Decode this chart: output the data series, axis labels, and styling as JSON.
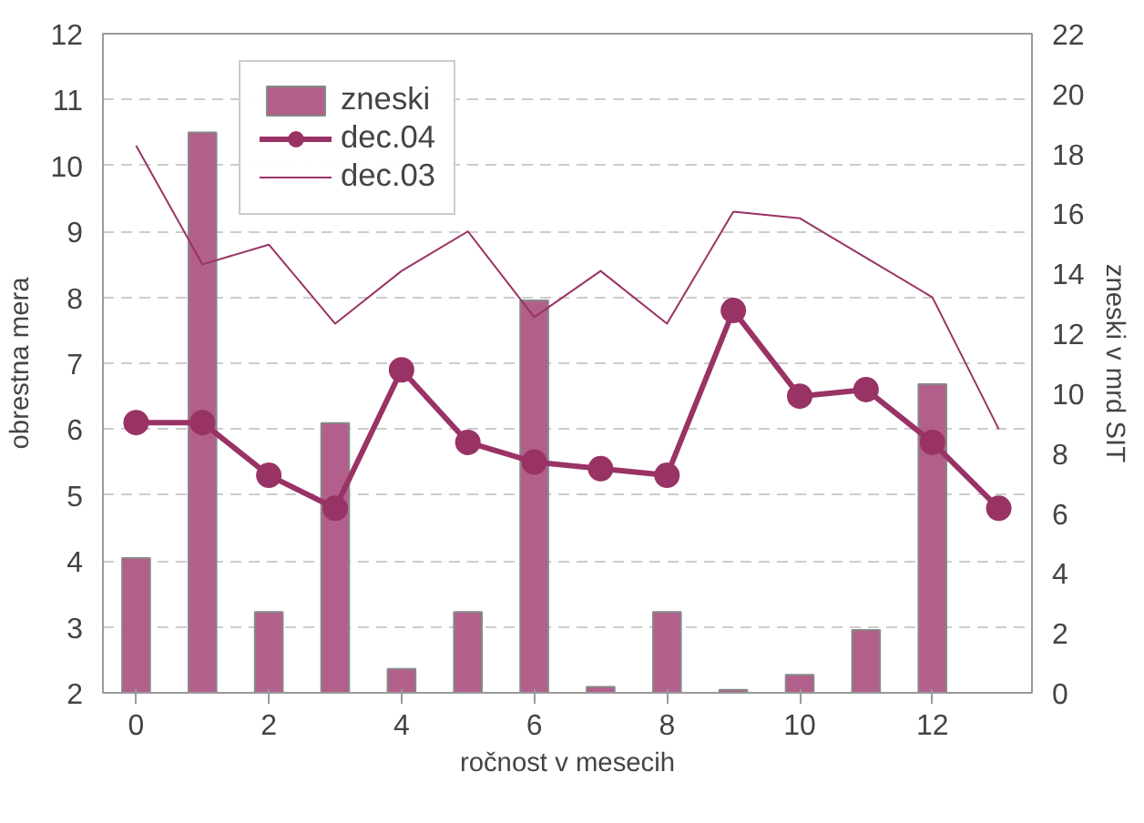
{
  "chart_data": {
    "type": "line",
    "xlabel": "ročnost v mesecih",
    "ylabel": "obrestna mera",
    "y2label": "zneski v mrd SIT",
    "x": [
      0,
      1,
      2,
      3,
      4,
      5,
      6,
      7,
      8,
      9,
      10,
      11,
      12,
      13
    ],
    "xlim": [
      -0.5,
      13.5
    ],
    "xticks": [
      0,
      2,
      4,
      6,
      8,
      10,
      12
    ],
    "ylim": [
      2,
      12
    ],
    "yticks": [
      2,
      3,
      4,
      5,
      6,
      7,
      8,
      9,
      10,
      11,
      12
    ],
    "y2lim": [
      0,
      22
    ],
    "y2ticks": [
      0,
      2,
      4,
      6,
      8,
      10,
      12,
      14,
      16,
      18,
      20,
      22
    ],
    "grid": "y",
    "legend": "top left",
    "series": [
      {
        "name": "zneski",
        "type": "bar",
        "axis": "y2",
        "color": "#b35f8c",
        "values": [
          4.5,
          18.7,
          2.7,
          9.0,
          0.8,
          2.7,
          13.1,
          0.2,
          2.7,
          0.1,
          0.6,
          2.1,
          10.3,
          null
        ]
      },
      {
        "name": "dec.04",
        "marker": "circle",
        "color": "#993366",
        "values": [
          6.1,
          6.1,
          5.3,
          4.8,
          6.9,
          5.8,
          5.5,
          5.4,
          5.3,
          7.8,
          6.5,
          6.6,
          5.8,
          4.8
        ]
      },
      {
        "name": "dec.03",
        "marker": "none",
        "color": "#993366",
        "values": [
          10.3,
          8.5,
          8.8,
          7.6,
          8.4,
          9.0,
          7.7,
          8.4,
          7.6,
          9.3,
          9.2,
          8.6,
          8.0,
          6.0
        ]
      }
    ]
  }
}
